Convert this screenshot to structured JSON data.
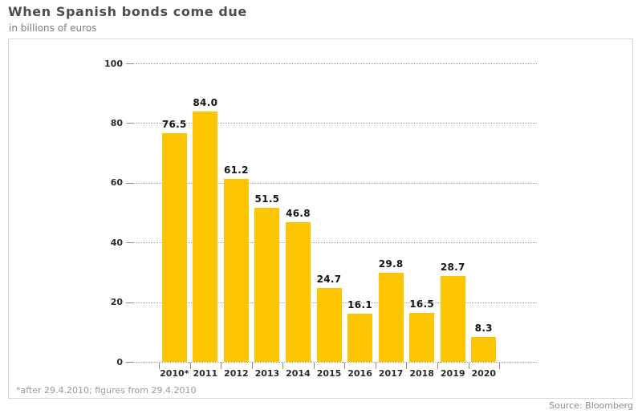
{
  "header": {
    "title": "When Spanish bonds come due",
    "subtitle": "in billions of euros"
  },
  "chart_data": {
    "type": "bar",
    "title": "When Spanish bonds come due",
    "subtitle": "in billions of euros",
    "categories": [
      "2010*",
      "2011",
      "2012",
      "2013",
      "2014",
      "2015",
      "2016",
      "2017",
      "2018",
      "2019",
      "2020"
    ],
    "values": [
      76.5,
      84.0,
      61.2,
      51.5,
      46.8,
      24.7,
      16.1,
      29.8,
      16.5,
      28.7,
      8.3
    ],
    "value_labels": [
      "76.5",
      "84.0",
      "61.2",
      "51.5",
      "46.8",
      "24.7",
      "16.1",
      "29.8",
      "16.5",
      "28.7",
      "8.3"
    ],
    "xlabel": "",
    "ylabel": "in billions of euros",
    "ylim": [
      0,
      100
    ],
    "yticks": [
      100,
      80,
      60,
      40,
      20,
      0
    ],
    "grid": "horizontal-dotted",
    "legend": "none",
    "bar_color": "#fdc500"
  },
  "footer": {
    "footnote": "*after 29.4.2010; figures from 29.4.2010",
    "source": "Source: Bloomberg"
  }
}
